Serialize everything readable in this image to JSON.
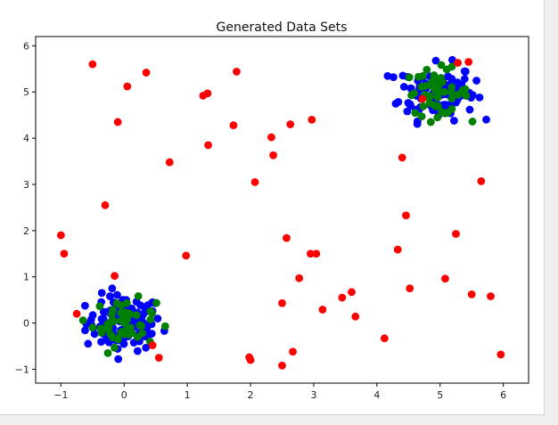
{
  "chart_data": {
    "type": "scatter",
    "title": "Generated Data Sets",
    "xlabel": "",
    "ylabel": "",
    "xlim": [
      -1.4,
      6.4
    ],
    "ylim": [
      -1.3,
      6.2
    ],
    "xticks": [
      "−1",
      "0",
      "1",
      "2",
      "3",
      "4",
      "5",
      "6"
    ],
    "yticks": [
      "−1",
      "0",
      "1",
      "2",
      "3",
      "4",
      "5",
      "6"
    ],
    "grid": false,
    "legend": "none",
    "clusters": [
      {
        "color": "#0000ff",
        "center": [
          0.0,
          0.0
        ],
        "spread": 0.3,
        "count": 110
      },
      {
        "color": "#0000ff",
        "center": [
          4.95,
          5.0
        ],
        "spread": 0.3,
        "count": 110
      },
      {
        "color": "#008000",
        "center": [
          0.0,
          0.0
        ],
        "spread": 0.25,
        "count": 50
      },
      {
        "color": "#008000",
        "center": [
          4.95,
          5.0
        ],
        "spread": 0.25,
        "count": 50
      }
    ],
    "series": [
      {
        "color": "#ff0000",
        "points": [
          [
            -1.0,
            1.9
          ],
          [
            -0.95,
            1.5
          ],
          [
            -0.75,
            0.2
          ],
          [
            -0.5,
            5.6
          ],
          [
            -0.3,
            2.55
          ],
          [
            -0.15,
            1.02
          ],
          [
            -0.1,
            4.35
          ],
          [
            0.05,
            5.12
          ],
          [
            0.35,
            5.42
          ],
          [
            0.45,
            -0.48
          ],
          [
            0.55,
            -0.75
          ],
          [
            0.72,
            3.48
          ],
          [
            0.98,
            1.46
          ],
          [
            1.25,
            4.92
          ],
          [
            1.32,
            4.97
          ],
          [
            1.33,
            3.85
          ],
          [
            1.73,
            4.28
          ],
          [
            1.78,
            5.44
          ],
          [
            1.98,
            -0.74
          ],
          [
            2.0,
            -0.8
          ],
          [
            2.07,
            3.05
          ],
          [
            2.33,
            4.02
          ],
          [
            2.36,
            3.63
          ],
          [
            2.5,
            0.43
          ],
          [
            2.5,
            -0.92
          ],
          [
            2.57,
            1.84
          ],
          [
            2.63,
            4.3
          ],
          [
            2.67,
            -0.62
          ],
          [
            2.77,
            0.97
          ],
          [
            2.95,
            1.5
          ],
          [
            2.97,
            4.4
          ],
          [
            3.04,
            1.5
          ],
          [
            3.14,
            0.29
          ],
          [
            3.45,
            0.55
          ],
          [
            3.6,
            0.67
          ],
          [
            3.66,
            0.14
          ],
          [
            4.12,
            -0.33
          ],
          [
            4.33,
            1.59
          ],
          [
            4.4,
            3.58
          ],
          [
            4.46,
            2.33
          ],
          [
            4.52,
            0.75
          ],
          [
            4.72,
            4.85
          ],
          [
            5.08,
            0.96
          ],
          [
            5.25,
            1.93
          ],
          [
            5.28,
            5.63
          ],
          [
            5.45,
            5.65
          ],
          [
            5.5,
            0.62
          ],
          [
            5.65,
            3.07
          ],
          [
            5.8,
            0.58
          ],
          [
            5.96,
            -0.68
          ]
        ]
      }
    ]
  }
}
